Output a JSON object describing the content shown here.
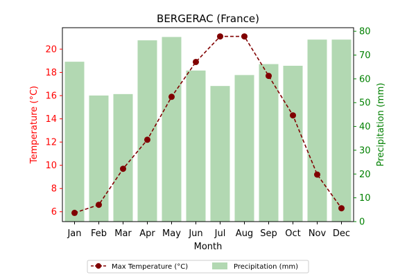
{
  "colors": {
    "temperature": "#800000",
    "temperature_axis": "#ff0000",
    "precipitation_bar": "#b2d8b2",
    "precipitation_axis": "#008000",
    "axis": "#000000"
  },
  "chart_data": {
    "type": "bar+line",
    "title": "BERGERAC (France)",
    "xlabel": "Month",
    "ylabel_left": "Temperature (°C)",
    "ylabel_right": "Precipitation (mm)",
    "categories": [
      "Jan",
      "Feb",
      "Mar",
      "Apr",
      "May",
      "Jun",
      "Jul",
      "Aug",
      "Sep",
      "Oct",
      "Nov",
      "Dec"
    ],
    "ylim_left": [
      5.15,
      21.85
    ],
    "ylim_right": [
      0,
      81.5
    ],
    "yticks_left": [
      6,
      8,
      10,
      12,
      14,
      16,
      18,
      20
    ],
    "yticks_right": [
      0,
      10,
      20,
      30,
      40,
      50,
      60,
      70,
      80
    ],
    "series": [
      {
        "name": "Max Temperature (°C)",
        "type": "line",
        "axis": "left",
        "values": [
          5.9,
          6.6,
          9.7,
          12.2,
          15.9,
          18.9,
          21.1,
          21.1,
          17.7,
          14.3,
          9.2,
          6.3
        ]
      },
      {
        "name": "Precipitation (mm)",
        "type": "bar",
        "axis": "right",
        "values": [
          67.2,
          53.0,
          53.6,
          76.2,
          77.6,
          63.5,
          57.0,
          61.6,
          66.2,
          65.5,
          76.5,
          76.5
        ]
      }
    ],
    "legend_position": "bottom-center",
    "grid": false
  }
}
